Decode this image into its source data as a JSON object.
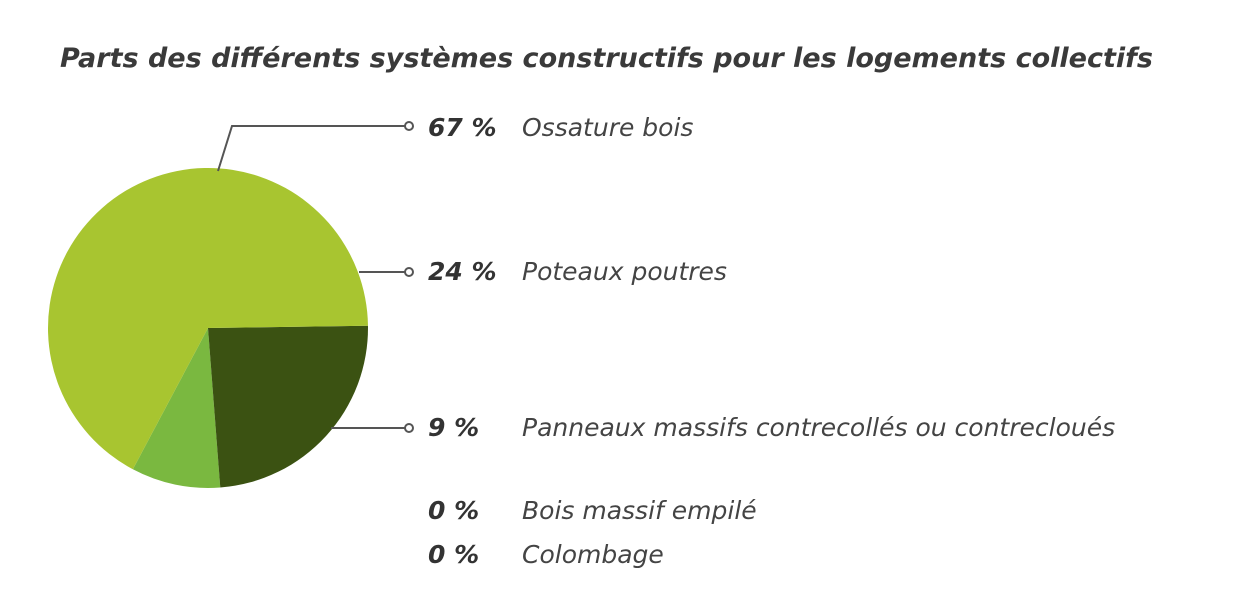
{
  "chart_data": {
    "type": "pie",
    "title": "Parts des différents systèmes constructifs pour les logements collectifs",
    "slices": [
      {
        "label": "Ossature bois",
        "value": 67,
        "display": "67 %",
        "color": "#a8c530"
      },
      {
        "label": "Poteaux poutres",
        "value": 24,
        "display": "24 %",
        "color": "#3b5212"
      },
      {
        "label": "Panneaux massifs contrecollés ou contrecloués",
        "value": 9,
        "display": "9 %",
        "color": "#7ab840"
      },
      {
        "label": "Bois massif empilé",
        "value": 0,
        "display": "0 %",
        "color": "#a8c530"
      },
      {
        "label": "Colombage",
        "value": 0,
        "display": "0 %",
        "color": "#a8c530"
      }
    ]
  }
}
